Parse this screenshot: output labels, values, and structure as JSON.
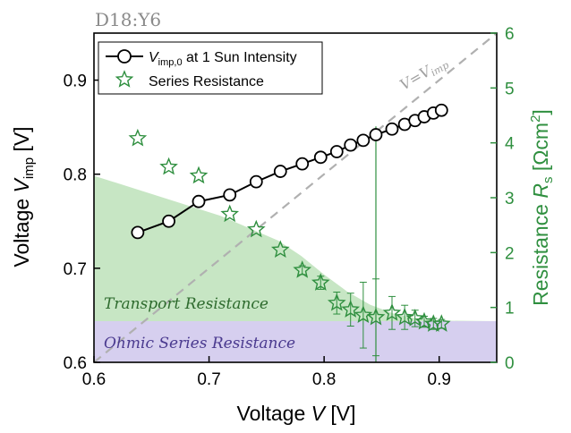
{
  "chart_data": {
    "type": "line",
    "label_top_left": "D18:Y6",
    "x_axis": {
      "label_prefix": "Voltage ",
      "label_var": "V",
      "label_unit": " [V]",
      "range": [
        0.6,
        0.95
      ],
      "ticks": [
        0.6,
        0.7,
        0.8,
        0.9
      ],
      "tick_labels": [
        "0.6",
        "0.7",
        "0.8",
        "0.9"
      ]
    },
    "y_left": {
      "label_prefix": "Voltage ",
      "label_var": "V",
      "label_sub": "imp",
      "label_unit": " [V]",
      "range": [
        0.6,
        0.95
      ],
      "ticks": [
        0.6,
        0.7,
        0.8,
        0.9
      ],
      "tick_labels": [
        "0.6",
        "0.7",
        "0.8",
        "0.9"
      ]
    },
    "y_right": {
      "label_prefix": "Resistance ",
      "label_var": "R",
      "label_sub": "s",
      "label_unit_open": " [Ωcm",
      "label_sup": "2",
      "label_unit_close": "]",
      "range": [
        0,
        6
      ],
      "ticks": [
        0,
        1,
        2,
        3,
        4,
        5,
        6
      ],
      "tick_labels": [
        "0",
        "1",
        "2",
        "3",
        "4",
        "5",
        "6"
      ]
    },
    "series": [
      {
        "name": "V_imp,0 at 1 Sun Intensity",
        "axis": "left",
        "marker": "circle",
        "color": "#000000",
        "x": [
          0.638,
          0.665,
          0.691,
          0.718,
          0.741,
          0.762,
          0.781,
          0.797,
          0.811,
          0.823,
          0.834,
          0.845,
          0.859,
          0.87,
          0.879,
          0.887,
          0.895,
          0.902
        ],
        "y": [
          0.738,
          0.75,
          0.771,
          0.778,
          0.792,
          0.803,
          0.811,
          0.818,
          0.824,
          0.831,
          0.836,
          0.842,
          0.848,
          0.853,
          0.857,
          0.861,
          0.865,
          0.868
        ]
      },
      {
        "name": "Series Resistance",
        "axis": "right",
        "marker": "star",
        "color": "#2f8f3f",
        "x": [
          0.638,
          0.665,
          0.691,
          0.718,
          0.741,
          0.762,
          0.781,
          0.797,
          0.811,
          0.823,
          0.834,
          0.845,
          0.859,
          0.87,
          0.879,
          0.887,
          0.895,
          0.902
        ],
        "y": [
          4.08,
          3.56,
          3.4,
          2.7,
          2.42,
          2.05,
          1.68,
          1.45,
          1.08,
          0.96,
          0.86,
          0.82,
          0.9,
          0.82,
          0.8,
          0.74,
          0.7,
          0.7
        ],
        "err": [
          0,
          0,
          0,
          0,
          0,
          0,
          0.08,
          0.12,
          0.2,
          0.3,
          0.6,
          0.7,
          0.3,
          0.22,
          0.15,
          0.1,
          0.1,
          0.08
        ],
        "error_bar_vertical": {
          "x": 0.845,
          "y_low": 0.0,
          "y_high": 4.3
        }
      }
    ],
    "reference_line": {
      "label_lhs": "V",
      "label_eq": "=",
      "label_rhs_var": "V",
      "label_rhs_sub": "imp",
      "style": "dashed",
      "color": "#b0b0b0",
      "x": [
        0.6,
        0.95
      ],
      "y": [
        0.6,
        0.95
      ]
    },
    "regions": [
      {
        "name": "Transport Resistance",
        "color": "#c7e6c4",
        "axis": "right",
        "x": [
          0.6,
          0.71,
          0.76,
          0.78,
          0.8,
          0.82,
          0.84,
          0.86,
          0.88,
          0.9,
          0.95
        ],
        "y": [
          3.4,
          2.67,
          2.22,
          1.94,
          1.6,
          1.29,
          1.05,
          0.89,
          0.8,
          0.76,
          0.75
        ]
      },
      {
        "name": "Ohmic Series Resistance",
        "color": "#d6cfef",
        "axis": "right",
        "y_top": 0.75
      }
    ],
    "legend": {
      "position": "top-left",
      "entries": [
        {
          "sym": "circle",
          "var": "V",
          "sub": "imp,0",
          "text": " at 1 Sun Intensity"
        },
        {
          "sym": "star",
          "text": "Series Resistance"
        }
      ]
    }
  }
}
